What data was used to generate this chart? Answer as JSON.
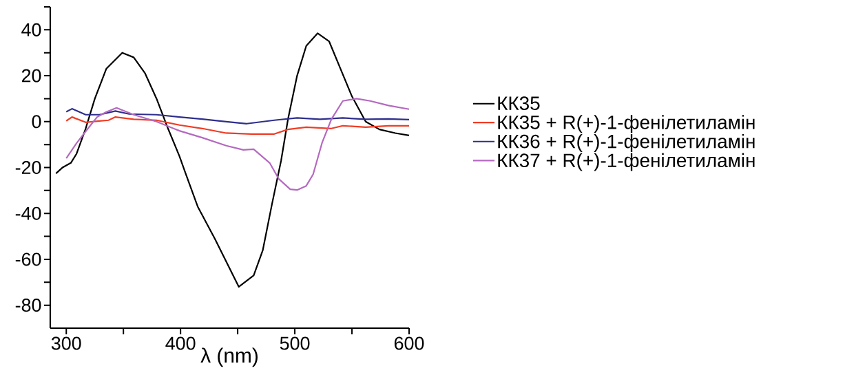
{
  "chart_data": {
    "type": "line",
    "xlabel": "λ (nm)",
    "xlim": [
      286,
      600
    ],
    "ylim": [
      -90,
      50
    ],
    "xticks": [
      300,
      {
        "value": 350,
        "label": null
      },
      400,
      {
        "value": 450,
        "label": null
      },
      500,
      {
        "value": 550,
        "label": null
      },
      600
    ],
    "yticks": [
      -80,
      {
        "value": -70,
        "label": null
      },
      -60,
      {
        "value": -50,
        "label": null
      },
      -40,
      {
        "value": -30,
        "label": null
      },
      -20,
      {
        "value": -10,
        "label": null
      },
      0,
      {
        "value": 10,
        "label": null
      },
      20,
      {
        "value": 30,
        "label": null
      },
      40,
      {
        "value": 50,
        "label": null
      }
    ],
    "legend": "right",
    "grid": false,
    "marker": "none",
    "line_style": "solid",
    "series": [
      {
        "name": "КК35",
        "color": "#000000",
        "x": [
          291,
          297,
          304,
          309,
          317,
          325,
          335,
          349,
          359,
          369,
          379,
          389,
          399,
          404,
          415,
          430,
          451,
          464,
          472,
          480,
          488,
          494,
          502,
          510,
          520,
          530,
          540,
          550,
          562,
          574,
          588,
          600
        ],
        "values": [
          -22.6,
          -19.9,
          -18,
          -14,
          -3,
          10,
          23,
          30,
          28,
          21,
          10,
          -3,
          -15,
          -22,
          -37,
          -51,
          -72,
          -67,
          -56,
          -36,
          -17,
          1,
          20,
          33,
          38.5,
          35,
          23,
          11,
          0,
          -3.4,
          -5,
          -6
        ]
      },
      {
        "name": "КК35 + R(+)-1-фенілетиламін",
        "color": "#f03c24",
        "x": [
          300,
          305,
          317,
          329,
          337,
          343,
          359,
          379,
          399,
          419,
          440,
          462,
          482,
          494,
          510,
          532,
          542,
          562,
          582,
          600
        ],
        "values": [
          0.3,
          2,
          -0.3,
          0.3,
          0.6,
          2,
          1,
          0.6,
          -1.5,
          -3,
          -5,
          -5.4,
          -5.4,
          -3.4,
          -2.4,
          -3,
          -1.8,
          -2.4,
          -1.8,
          -1.8
        ]
      },
      {
        "name": "КК36 + R(+)-1-фенілетиламін",
        "color": "#2e2e8c",
        "x": [
          300,
          305,
          317,
          329,
          343,
          355,
          379,
          399,
          419,
          440,
          458,
          482,
          502,
          522,
          542,
          562,
          582,
          600
        ],
        "values": [
          4.3,
          5.6,
          3,
          3,
          4.6,
          3.3,
          3,
          2,
          1.1,
          0,
          -0.9,
          0.6,
          1.6,
          1,
          1.6,
          1,
          1.2,
          0.9
        ]
      },
      {
        "name": "КК37 + R(+)-1-фенілетиламін",
        "color": "#b469c0",
        "x": [
          300,
          309,
          319,
          327,
          335,
          344,
          359,
          379,
          399,
          419,
          440,
          455,
          464,
          478,
          486,
          496,
          502,
          510,
          516,
          524,
          532,
          542,
          554,
          566,
          582,
          600
        ],
        "values": [
          -16,
          -9.4,
          -3,
          2,
          4.2,
          6,
          3,
          0,
          -4,
          -7,
          -10.5,
          -12.3,
          -12,
          -18,
          -25,
          -29.5,
          -29.8,
          -28,
          -23,
          -9,
          1,
          9,
          10,
          9,
          7,
          5.4
        ]
      }
    ]
  }
}
